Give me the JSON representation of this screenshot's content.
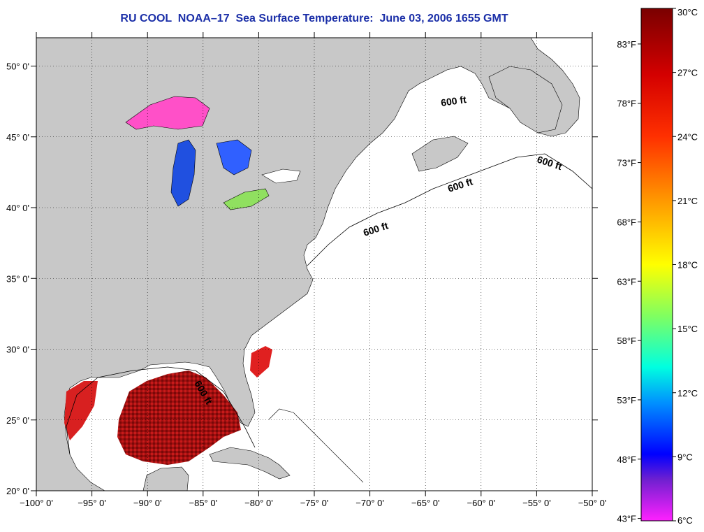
{
  "title": "RU COOL  NOAA–17  Sea Surface Temperature:  June 03, 2006 1655 GMT",
  "map": {
    "lon_range": [
      -100,
      -50
    ],
    "lat_range": [
      20,
      52
    ],
    "lon_ticks": [
      {
        "value": -100,
        "label": "−100° 0'"
      },
      {
        "value": -95,
        "label": "−95° 0'"
      },
      {
        "value": -90,
        "label": "−90° 0'"
      },
      {
        "value": -85,
        "label": "−85° 0'"
      },
      {
        "value": -80,
        "label": "−80° 0'"
      },
      {
        "value": -75,
        "label": "−75° 0'"
      },
      {
        "value": -70,
        "label": "−70° 0'"
      },
      {
        "value": -65,
        "label": "−65° 0'"
      },
      {
        "value": -60,
        "label": "−60° 0'"
      },
      {
        "value": -55,
        "label": "−55° 0'"
      },
      {
        "value": -50,
        "label": "−50° 0'"
      }
    ],
    "lat_ticks": [
      {
        "value": 20,
        "label": "20° 0'"
      },
      {
        "value": 25,
        "label": "25° 0'"
      },
      {
        "value": 30,
        "label": "30° 0'"
      },
      {
        "value": 35,
        "label": "35° 0'"
      },
      {
        "value": 40,
        "label": "40° 0'"
      },
      {
        "value": 45,
        "label": "45° 0'"
      },
      {
        "value": 50,
        "label": "50° 0'"
      }
    ],
    "grid": "dotted",
    "contour_label": "600 ft",
    "colors": {
      "land": "#c8c8c8",
      "ocean": "#ffffff",
      "title": "#1b2fa8"
    }
  },
  "colorbar": {
    "celsius": [
      {
        "value": 30,
        "label": "30°C"
      },
      {
        "value": 27,
        "label": "27°C"
      },
      {
        "value": 24,
        "label": "24°C"
      },
      {
        "value": 21,
        "label": "21°C"
      },
      {
        "value": 18,
        "label": "18°C"
      },
      {
        "value": 15,
        "label": "15°C"
      },
      {
        "value": 12,
        "label": "12°C"
      },
      {
        "value": 9,
        "label": "9°C"
      },
      {
        "value": 6,
        "label": "6°C"
      }
    ],
    "fahrenheit": [
      {
        "value": 83,
        "label": "83°F"
      },
      {
        "value": 78,
        "label": "78°F"
      },
      {
        "value": 73,
        "label": "73°F"
      },
      {
        "value": 68,
        "label": "68°F"
      },
      {
        "value": 63,
        "label": "63°F"
      },
      {
        "value": 58,
        "label": "58°F"
      },
      {
        "value": 53,
        "label": "53°F"
      },
      {
        "value": 48,
        "label": "48°F"
      },
      {
        "value": 43,
        "label": "43°F"
      }
    ],
    "colors": [
      "#8b0000",
      "#ff0000",
      "#ff8c00",
      "#ffff00",
      "#80ff80",
      "#00ffff",
      "#0060ff",
      "#0000ff",
      "#8a2be2",
      "#ff00ff"
    ]
  }
}
